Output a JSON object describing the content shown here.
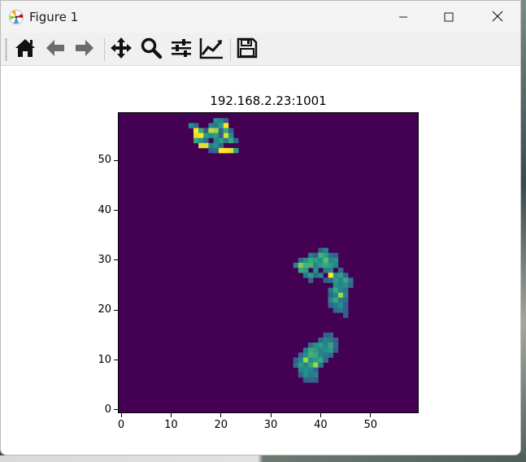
{
  "window": {
    "title": "Figure 1"
  },
  "titlebar_buttons": {
    "minimize_icon": "minimize-icon",
    "maximize_icon": "maximize-icon",
    "close_icon": "close-icon"
  },
  "toolbar": {
    "items": [
      {
        "name": "home-button",
        "icon": "home-icon"
      },
      {
        "name": "back-button",
        "icon": "arrow-left-icon"
      },
      {
        "name": "forward-button",
        "icon": "arrow-right-icon"
      },
      {
        "name": "pan-button",
        "icon": "move-icon"
      },
      {
        "name": "zoom-button",
        "icon": "magnifier-icon"
      },
      {
        "name": "subplots-button",
        "icon": "sliders-icon"
      },
      {
        "name": "customize-button",
        "icon": "line-chart-icon"
      },
      {
        "name": "save-button",
        "icon": "floppy-disk-icon"
      }
    ]
  },
  "chart_data": {
    "type": "heatmap",
    "title": "192.168.2.23:1001",
    "xlabel": "",
    "ylabel": "",
    "xlim": [
      -0.5,
      59.5
    ],
    "ylim": [
      -0.5,
      59.5
    ],
    "xticks": [
      0,
      10,
      20,
      30,
      40,
      50
    ],
    "yticks": [
      0,
      10,
      20,
      30,
      40,
      50
    ],
    "colormap": "viridis",
    "background_value": 0,
    "grid_size": [
      60,
      60
    ],
    "cells": [
      [
        14,
        57,
        0.5
      ],
      [
        15,
        57,
        0.35
      ],
      [
        19,
        58,
        0.5
      ],
      [
        20,
        58,
        0.45
      ],
      [
        21,
        58,
        0.3
      ],
      [
        15,
        56,
        1.0
      ],
      [
        16,
        56,
        0.6
      ],
      [
        17,
        56,
        0.3
      ],
      [
        18,
        57,
        0.45
      ],
      [
        19,
        57,
        0.4
      ],
      [
        20,
        57,
        0.55
      ],
      [
        21,
        57,
        1.0
      ],
      [
        15,
        55,
        0.95
      ],
      [
        16,
        55,
        1.0
      ],
      [
        17,
        55,
        0.55
      ],
      [
        18,
        56,
        0.9
      ],
      [
        19,
        56,
        0.85
      ],
      [
        20,
        56,
        0.35
      ],
      [
        21,
        56,
        0.6
      ],
      [
        22,
        56,
        0.3
      ],
      [
        15,
        54,
        0.6
      ],
      [
        16,
        54,
        0.5
      ],
      [
        17,
        54,
        0.35
      ],
      [
        18,
        55,
        0.5
      ],
      [
        19,
        55,
        0.55
      ],
      [
        20,
        55,
        0.3
      ],
      [
        21,
        55,
        0.95
      ],
      [
        22,
        55,
        0.5
      ],
      [
        16,
        53,
        0.95
      ],
      [
        17,
        53,
        0.95
      ],
      [
        18,
        53,
        0.45
      ],
      [
        19,
        54,
        0.45
      ],
      [
        20,
        54,
        0.55
      ],
      [
        21,
        54,
        0.4
      ],
      [
        22,
        54,
        0.6
      ],
      [
        23,
        54,
        0.35
      ],
      [
        18,
        52,
        0.3
      ],
      [
        19,
        53,
        0.5
      ],
      [
        20,
        53,
        0.35
      ],
      [
        21,
        52,
        1.0
      ],
      [
        22,
        52,
        0.95
      ],
      [
        23,
        52,
        0.55
      ],
      [
        20,
        52,
        1.0
      ],
      [
        19,
        52,
        0.35
      ],
      [
        36,
        30,
        0.35
      ],
      [
        37,
        30,
        0.5
      ],
      [
        38,
        31,
        0.4
      ],
      [
        39,
        31,
        0.3
      ],
      [
        40,
        32,
        0.3
      ],
      [
        41,
        32,
        0.45
      ],
      [
        42,
        31,
        0.35
      ],
      [
        43,
        31,
        0.3
      ],
      [
        35,
        29,
        0.45
      ],
      [
        36,
        29,
        0.8
      ],
      [
        37,
        29,
        0.65
      ],
      [
        38,
        30,
        0.6
      ],
      [
        39,
        30,
        0.55
      ],
      [
        40,
        31,
        0.65
      ],
      [
        41,
        31,
        0.55
      ],
      [
        42,
        30,
        0.45
      ],
      [
        43,
        30,
        0.5
      ],
      [
        36,
        28,
        0.6
      ],
      [
        37,
        28,
        0.55
      ],
      [
        38,
        29,
        0.65
      ],
      [
        39,
        29,
        0.45
      ],
      [
        40,
        30,
        0.5
      ],
      [
        41,
        30,
        0.7
      ],
      [
        42,
        29,
        0.55
      ],
      [
        43,
        29,
        0.45
      ],
      [
        44,
        28,
        0.35
      ],
      [
        37,
        27,
        0.4
      ],
      [
        38,
        27,
        0.55
      ],
      [
        39,
        28,
        0.5
      ],
      [
        40,
        29,
        0.55
      ],
      [
        41,
        29,
        0.6
      ],
      [
        42,
        28,
        0.45
      ],
      [
        43,
        27,
        0.5
      ],
      [
        44,
        27,
        0.55
      ],
      [
        45,
        27,
        0.35
      ],
      [
        38,
        26,
        0.3
      ],
      [
        39,
        27,
        0.35
      ],
      [
        40,
        27,
        0.45
      ],
      [
        41,
        28,
        0.4
      ],
      [
        42,
        27,
        1.0
      ],
      [
        43,
        26,
        0.55
      ],
      [
        44,
        26,
        0.45
      ],
      [
        45,
        26,
        0.6
      ],
      [
        46,
        26,
        0.4
      ],
      [
        41,
        26,
        0.3
      ],
      [
        42,
        26,
        0.35
      ],
      [
        43,
        25,
        0.5
      ],
      [
        44,
        25,
        0.45
      ],
      [
        45,
        25,
        0.5
      ],
      [
        46,
        25,
        0.35
      ],
      [
        42,
        24,
        0.4
      ],
      [
        43,
        24,
        0.6
      ],
      [
        44,
        24,
        0.45
      ],
      [
        45,
        24,
        0.4
      ],
      [
        42,
        23,
        0.35
      ],
      [
        43,
        23,
        0.45
      ],
      [
        44,
        23,
        0.85
      ],
      [
        45,
        23,
        0.45
      ],
      [
        42,
        22,
        0.45
      ],
      [
        43,
        22,
        0.6
      ],
      [
        44,
        22,
        0.4
      ],
      [
        45,
        22,
        0.35
      ],
      [
        42,
        21,
        0.35
      ],
      [
        43,
        21,
        0.4
      ],
      [
        44,
        21,
        0.5
      ],
      [
        45,
        21,
        0.3
      ],
      [
        43,
        20,
        0.35
      ],
      [
        44,
        20,
        0.4
      ],
      [
        45,
        20,
        0.3
      ],
      [
        45,
        19,
        0.3
      ],
      [
        41,
        15,
        0.3
      ],
      [
        42,
        15,
        0.35
      ],
      [
        40,
        14,
        0.35
      ],
      [
        41,
        14,
        0.45
      ],
      [
        42,
        14,
        0.4
      ],
      [
        43,
        14,
        0.3
      ],
      [
        38,
        13,
        0.35
      ],
      [
        39,
        13,
        0.5
      ],
      [
        40,
        13,
        0.55
      ],
      [
        41,
        13,
        0.45
      ],
      [
        42,
        13,
        0.6
      ],
      [
        43,
        13,
        0.35
      ],
      [
        37,
        12,
        0.4
      ],
      [
        38,
        12,
        0.6
      ],
      [
        39,
        12,
        0.55
      ],
      [
        40,
        12,
        0.45
      ],
      [
        41,
        12,
        0.5
      ],
      [
        42,
        12,
        0.55
      ],
      [
        43,
        12,
        0.3
      ],
      [
        36,
        11,
        0.35
      ],
      [
        37,
        11,
        0.5
      ],
      [
        38,
        11,
        0.65
      ],
      [
        39,
        11,
        0.6
      ],
      [
        40,
        11,
        0.45
      ],
      [
        41,
        11,
        0.4
      ],
      [
        42,
        11,
        0.35
      ],
      [
        35,
        10,
        0.3
      ],
      [
        36,
        10,
        0.45
      ],
      [
        37,
        10,
        0.85
      ],
      [
        38,
        10,
        0.5
      ],
      [
        39,
        10,
        0.55
      ],
      [
        40,
        10,
        0.6
      ],
      [
        41,
        10,
        0.35
      ],
      [
        35,
        9,
        0.35
      ],
      [
        36,
        9,
        0.55
      ],
      [
        37,
        9,
        0.45
      ],
      [
        38,
        9,
        0.6
      ],
      [
        39,
        9,
        0.85
      ],
      [
        40,
        9,
        0.4
      ],
      [
        36,
        8,
        0.45
      ],
      [
        37,
        8,
        0.5
      ],
      [
        38,
        8,
        0.45
      ],
      [
        39,
        8,
        0.35
      ],
      [
        36,
        7,
        0.3
      ],
      [
        37,
        7,
        0.5
      ],
      [
        38,
        7,
        0.4
      ],
      [
        39,
        7,
        0.45
      ],
      [
        37,
        6,
        0.3
      ],
      [
        38,
        6,
        0.35
      ],
      [
        39,
        6,
        0.3
      ]
    ]
  }
}
